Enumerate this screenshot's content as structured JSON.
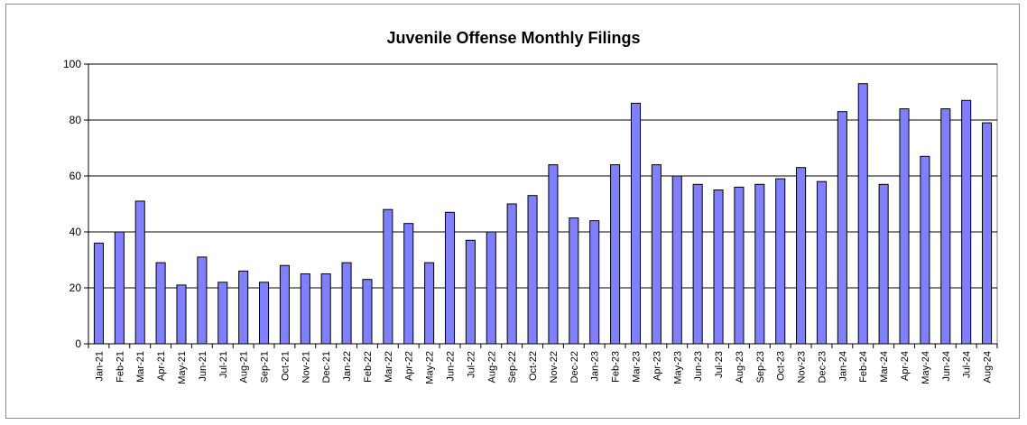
{
  "chart_data": {
    "type": "bar",
    "title": "Juvenile Offense Monthly Filings",
    "xlabel": "",
    "ylabel": "",
    "ylim": [
      0,
      100
    ],
    "yticks": [
      0,
      20,
      40,
      60,
      80,
      100
    ],
    "grid": true,
    "legend": "none",
    "bar_color": "#8080ff",
    "categories": [
      "Jan-21",
      "Feb-21",
      "Mar-21",
      "Apr-21",
      "May-21",
      "Jun-21",
      "Jul-21",
      "Aug-21",
      "Sep-21",
      "Oct-21",
      "Nov-21",
      "Dec-21",
      "Jan-22",
      "Feb-22",
      "Mar-22",
      "Apr-22",
      "May-22",
      "Jun-22",
      "Jul-22",
      "Aug-22",
      "Sep-22",
      "Oct-22",
      "Nov-22",
      "Dec-22",
      "Jan-23",
      "Feb-23",
      "Mar-23",
      "Apr-23",
      "May-23",
      "Jun-23",
      "Jul-23",
      "Aug-23",
      "Sep-23",
      "Oct-23",
      "Nov-23",
      "Dec-23",
      "Jan-24",
      "Feb-24",
      "Mar-24",
      "Apr-24",
      "May-24",
      "Jun-24",
      "Jul-24",
      "Aug-24"
    ],
    "values": [
      36,
      40,
      51,
      29,
      21,
      31,
      22,
      26,
      22,
      28,
      25,
      25,
      29,
      23,
      48,
      43,
      29,
      47,
      37,
      40,
      50,
      53,
      64,
      45,
      44,
      64,
      86,
      64,
      60,
      57,
      55,
      56,
      57,
      59,
      63,
      58,
      83,
      93,
      57,
      84,
      67,
      84,
      87,
      79
    ]
  }
}
